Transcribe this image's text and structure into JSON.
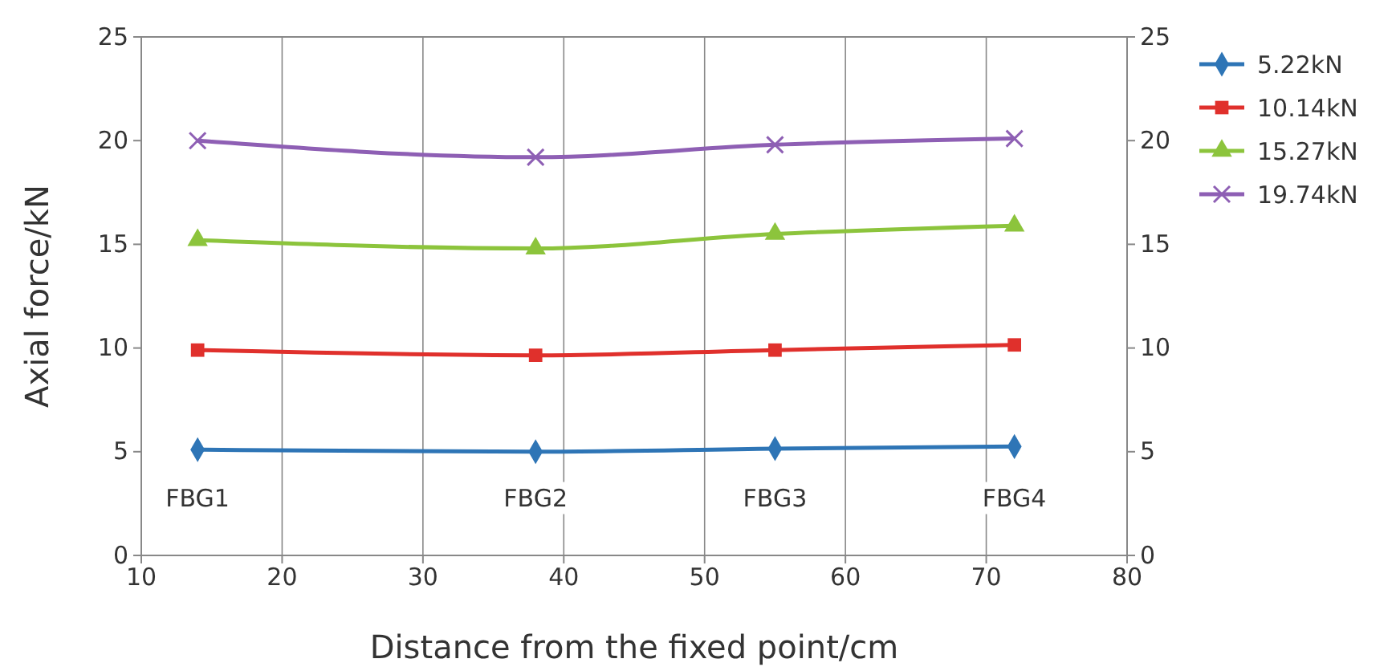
{
  "chart_data": {
    "type": "line",
    "xlabel": "Distance from the fixed point/cm",
    "ylabel": "Axial force/kN",
    "xlim": [
      10,
      80
    ],
    "xticks": [
      10,
      20,
      30,
      40,
      50,
      60,
      70,
      80
    ],
    "ylim": [
      0,
      25
    ],
    "yticks": [
      0,
      5,
      10,
      15,
      20,
      25
    ],
    "y2lim": [
      0,
      25
    ],
    "y2ticks": [
      0,
      5,
      10,
      15,
      20,
      25
    ],
    "grid": "x",
    "legend": "right",
    "x": [
      14,
      38,
      55,
      72
    ],
    "series": [
      {
        "name": "5.22kN",
        "color": "#2e75b6",
        "marker": "diamond",
        "values": [
          5.1,
          5.0,
          5.15,
          5.25
        ]
      },
      {
        "name": "10.14kN",
        "color": "#e0302c",
        "marker": "square",
        "values": [
          9.9,
          9.65,
          9.9,
          10.15
        ]
      },
      {
        "name": "15.27kN",
        "color": "#8cc43c",
        "marker": "triangle",
        "values": [
          15.2,
          14.8,
          15.5,
          15.9
        ]
      },
      {
        "name": "19.74kN",
        "color": "#8e5fb4",
        "marker": "cross",
        "values": [
          20.0,
          19.2,
          19.8,
          20.1
        ]
      }
    ],
    "annotations": [
      "FBG1",
      "FBG2",
      "FBG3",
      "FBG4"
    ]
  }
}
